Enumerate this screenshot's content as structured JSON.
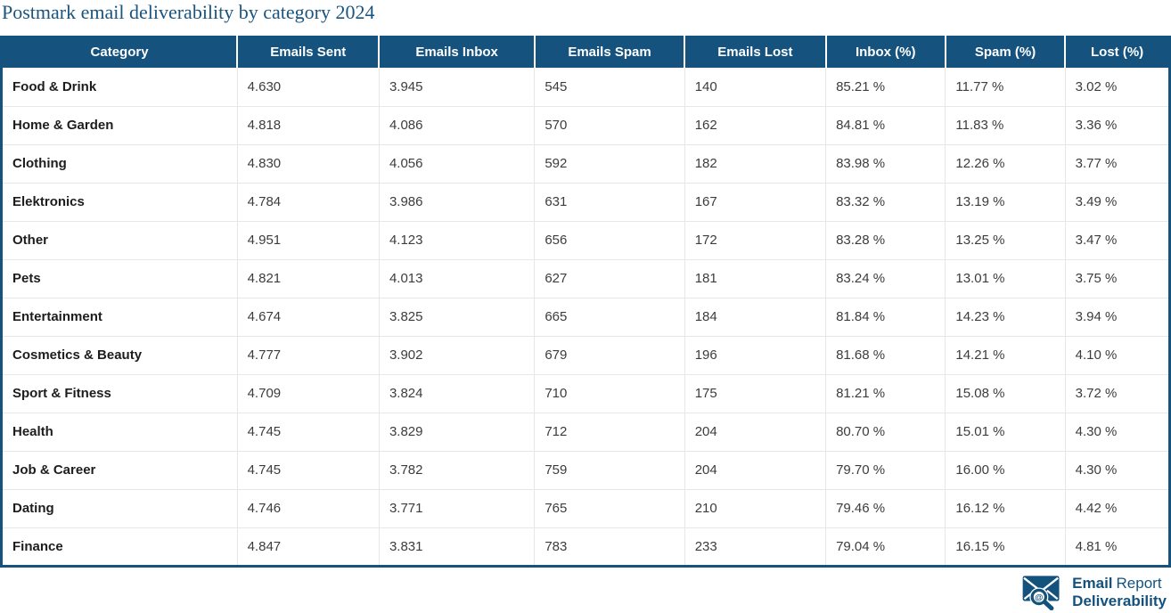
{
  "chart_data": {
    "type": "table",
    "title": "Postmark email deliverability by category 2024",
    "columns": [
      "Category",
      "Emails Sent",
      "Emails Inbox",
      "Emails Spam",
      "Emails Lost",
      "Inbox (%)",
      "Spam (%)",
      "Lost (%)"
    ],
    "rows": [
      [
        "Food & Drink",
        "4.630",
        "3.945",
        "545",
        "140",
        "85.21 %",
        "11.77 %",
        "3.02 %"
      ],
      [
        "Home & Garden",
        "4.818",
        "4.086",
        "570",
        "162",
        "84.81 %",
        "11.83 %",
        "3.36 %"
      ],
      [
        "Clothing",
        "4.830",
        "4.056",
        "592",
        "182",
        "83.98 %",
        "12.26 %",
        "3.77 %"
      ],
      [
        "Elektronics",
        "4.784",
        "3.986",
        "631",
        "167",
        "83.32 %",
        "13.19 %",
        "3.49 %"
      ],
      [
        "Other",
        "4.951",
        "4.123",
        "656",
        "172",
        "83.28 %",
        "13.25 %",
        "3.47 %"
      ],
      [
        "Pets",
        "4.821",
        "4.013",
        "627",
        "181",
        "83.24 %",
        "13.01 %",
        "3.75 %"
      ],
      [
        "Entertainment",
        "4.674",
        "3.825",
        "665",
        "184",
        "81.84 %",
        "14.23 %",
        "3.94 %"
      ],
      [
        "Cosmetics & Beauty",
        "4.777",
        "3.902",
        "679",
        "196",
        "81.68 %",
        "14.21 %",
        "4.10 %"
      ],
      [
        "Sport & Fitness",
        "4.709",
        "3.824",
        "710",
        "175",
        "81.21 %",
        "15.08 %",
        "3.72 %"
      ],
      [
        "Health",
        "4.745",
        "3.829",
        "712",
        "204",
        "80.70 %",
        "15.01 %",
        "4.30 %"
      ],
      [
        "Job & Career",
        "4.745",
        "3.782",
        "759",
        "204",
        "79.70 %",
        "16.00 %",
        "4.30 %"
      ],
      [
        "Dating",
        "4.746",
        "3.771",
        "765",
        "210",
        "79.46 %",
        "16.12 %",
        "4.42 %"
      ],
      [
        "Finance",
        "4.847",
        "3.831",
        "783",
        "233",
        "79.04 %",
        "16.15 %",
        "4.81 %"
      ]
    ]
  },
  "logo": {
    "line1_bold": "Email",
    "line1_regular": "Report",
    "line2_bold": "Deliverability",
    "at_symbol": "@",
    "icon": "envelope-magnifier-at-icon"
  },
  "colors": {
    "header_bg": "#15527E",
    "header_text": "#FFFFFF",
    "title_text": "#1A547F",
    "row_divider": "#E7E7E7",
    "body_text": "#3C3C3C",
    "category_text": "#1D1D1D",
    "logo_blue": "#14527E"
  }
}
